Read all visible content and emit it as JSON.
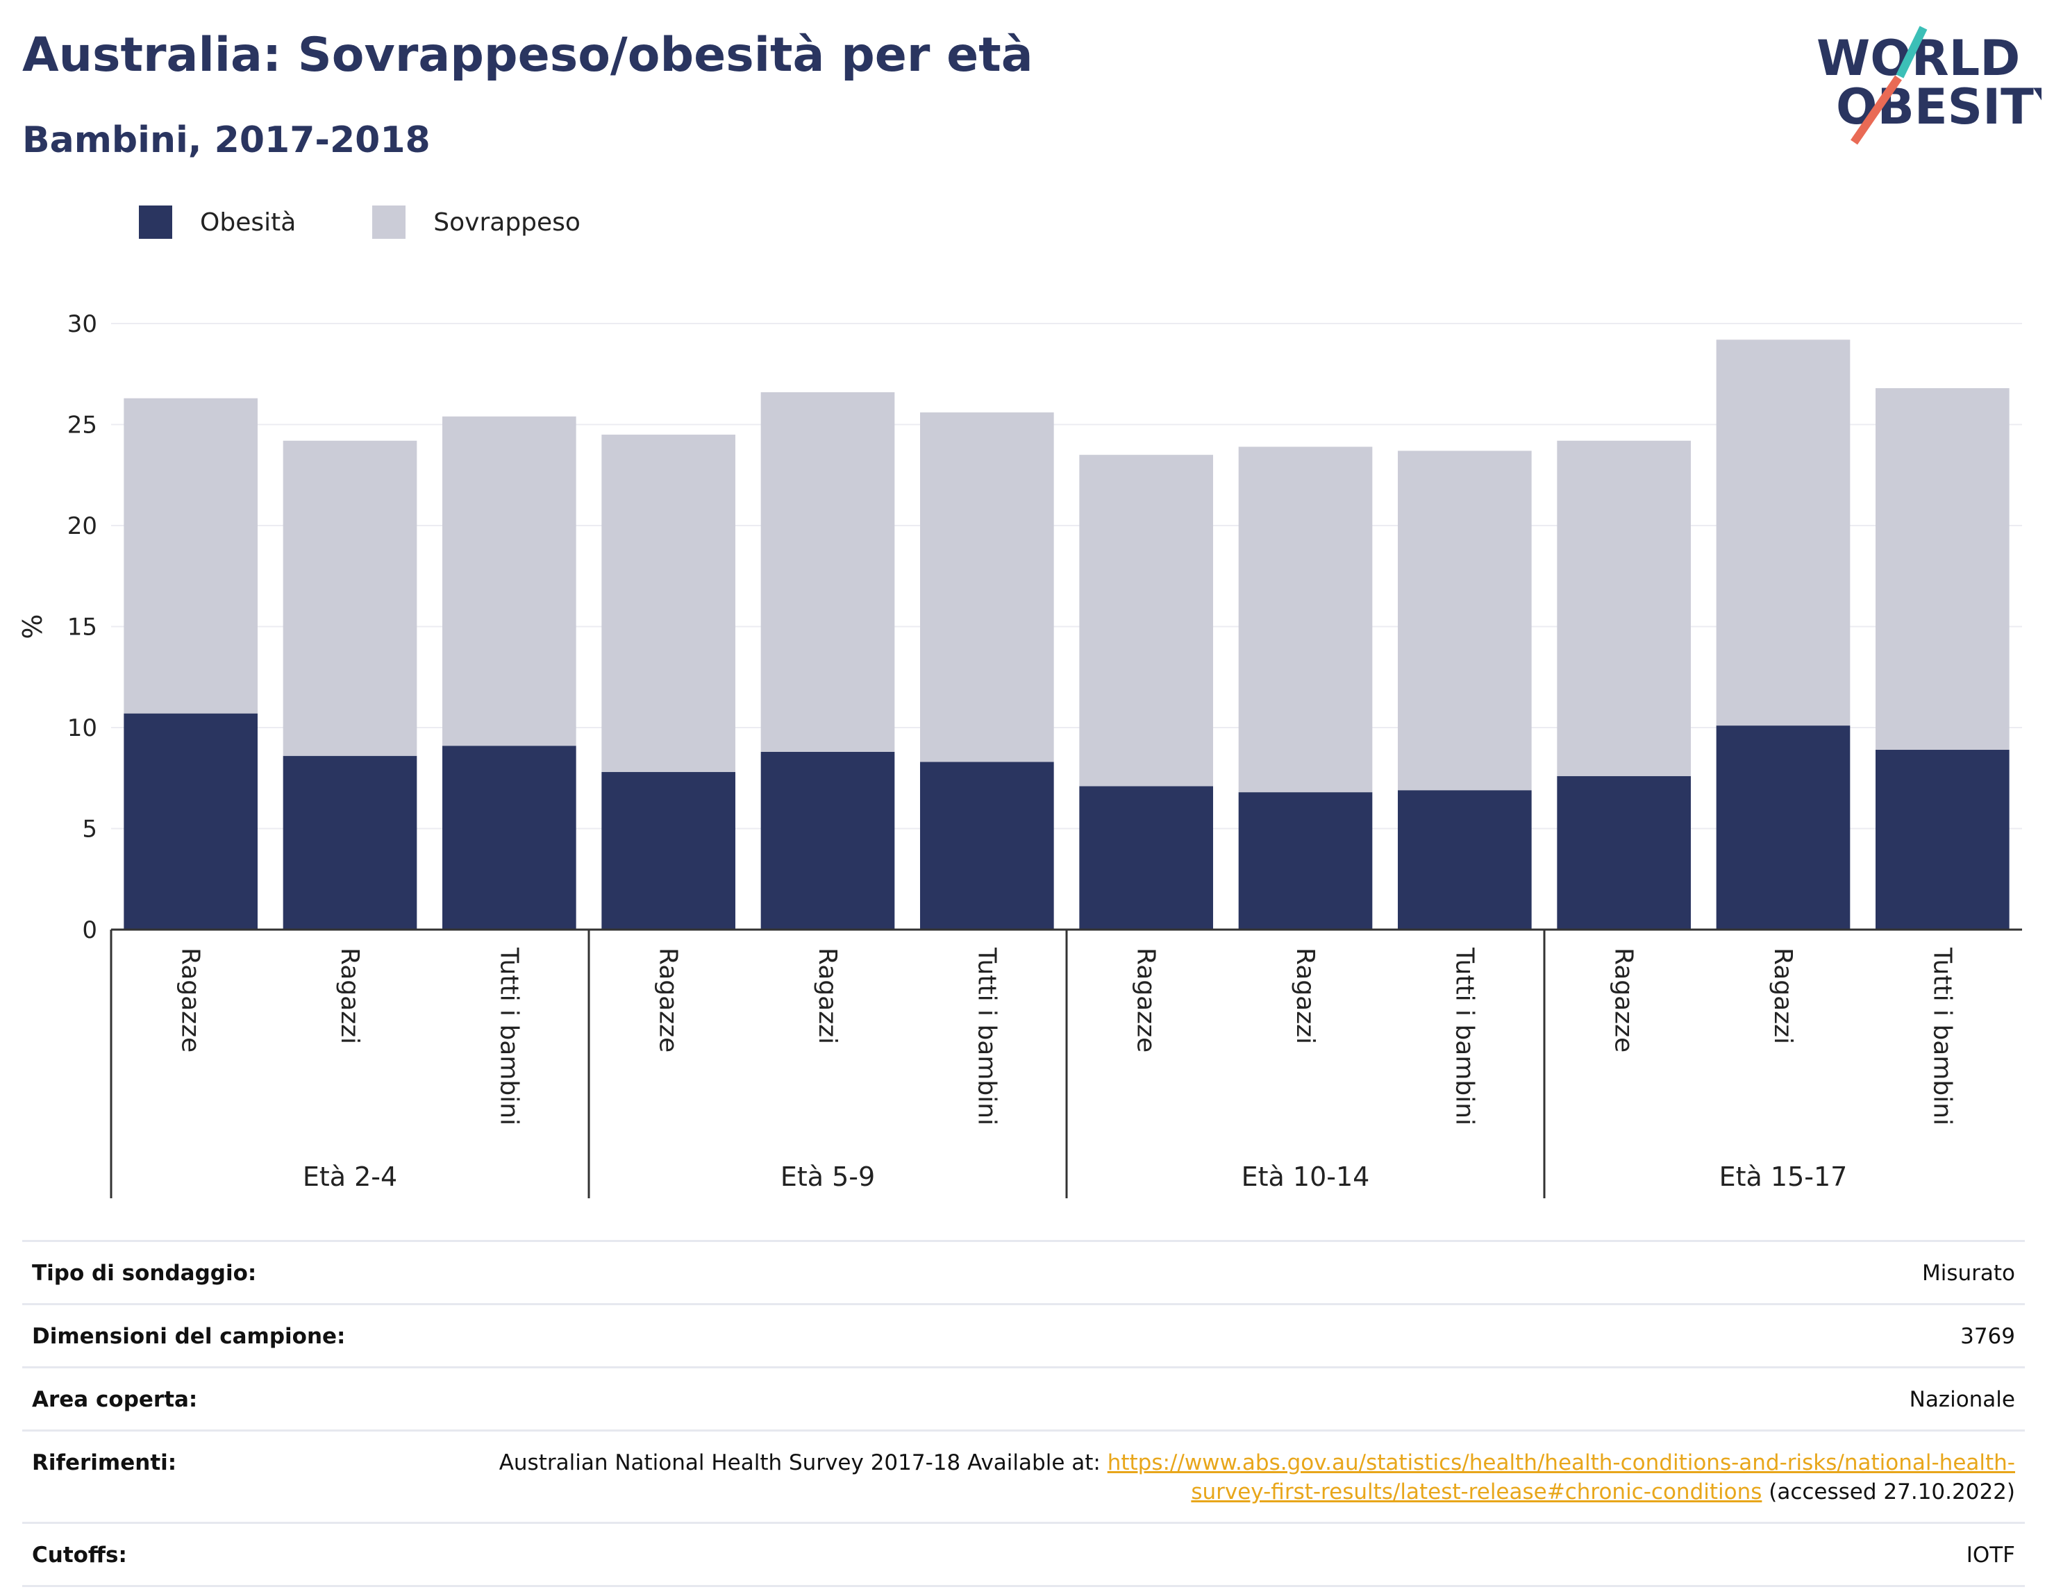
{
  "header": {
    "title": "Australia: Sovrappeso/obesità per età",
    "subtitle": "Bambini, 2017-2018"
  },
  "logo": {
    "line1": "WORLD",
    "line2": "OBESITY",
    "icon": "world-obesity-logo"
  },
  "colors": {
    "obesity": "#2a3560",
    "overweight": "#cbccd7",
    "accent_teal": "#3cbfb7",
    "accent_coral": "#e96a55",
    "link": "#e8a61a"
  },
  "chart_data": {
    "type": "bar",
    "stacked": true,
    "ylabel": "%",
    "ylim": [
      0,
      30
    ],
    "yticks": [
      0,
      5,
      10,
      15,
      20,
      25,
      30
    ],
    "grid": true,
    "legend_position": "top-left",
    "groups": [
      {
        "label": "Età 2-4",
        "categories": [
          "Ragazze",
          "Ragazzi",
          "Tutti i bambini"
        ]
      },
      {
        "label": "Età 5-9",
        "categories": [
          "Ragazze",
          "Ragazzi",
          "Tutti i bambini"
        ]
      },
      {
        "label": "Età 10-14",
        "categories": [
          "Ragazze",
          "Ragazzi",
          "Tutti i bambini"
        ]
      },
      {
        "label": "Età 15-17",
        "categories": [
          "Ragazze",
          "Ragazzi",
          "Tutti i bambini"
        ]
      }
    ],
    "series": [
      {
        "name": "Obesità",
        "values": [
          10.7,
          8.6,
          9.1,
          7.8,
          8.8,
          8.3,
          7.1,
          6.8,
          6.9,
          7.6,
          10.1,
          8.9
        ]
      },
      {
        "name": "Sovrappeso",
        "values": [
          15.6,
          15.6,
          16.3,
          16.7,
          17.8,
          17.3,
          16.4,
          17.1,
          16.8,
          16.6,
          19.1,
          17.9
        ]
      }
    ]
  },
  "info": {
    "survey_type_label": "Tipo di sondaggio:",
    "survey_type_value": "Misurato",
    "sample_size_label": "Dimensioni del campione:",
    "sample_size_value": "3769",
    "area_label": "Area coperta:",
    "area_value": "Nazionale",
    "references_label": "Riferimenti:",
    "references_text": "Australian National Health Survey 2017-18 Available at: ",
    "references_link": "https://www.abs.gov.au/statistics/health/health-conditions-and-risks/national-health-survey-first-results/latest-release#chronic-conditions",
    "references_suffix": " (accessed 27.10.2022)",
    "cutoffs_label": "Cutoffs:",
    "cutoffs_value": "IOTF"
  }
}
